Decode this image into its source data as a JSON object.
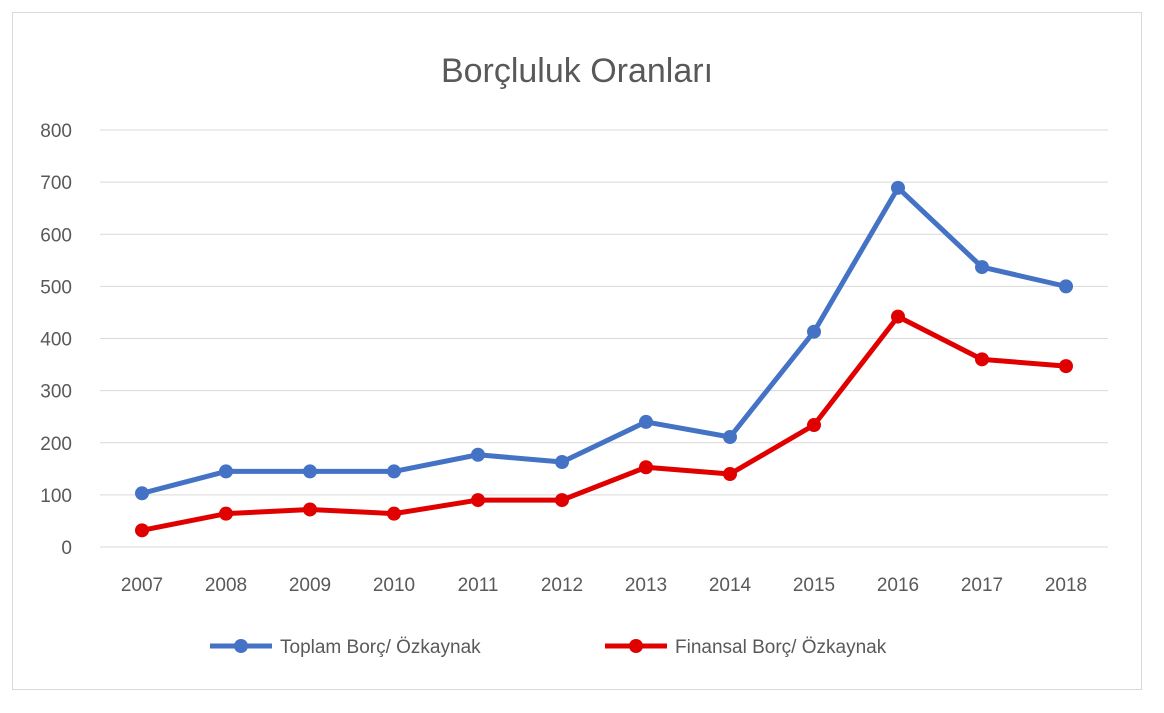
{
  "chart_data": {
    "type": "line",
    "title": "Borçluluk Oranları",
    "xlabel": "",
    "ylabel": "",
    "categories": [
      "2007",
      "2008",
      "2009",
      "2010",
      "2011",
      "2012",
      "2013",
      "2014",
      "2015",
      "2016",
      "2017",
      "2018"
    ],
    "ylim": [
      0,
      800
    ],
    "yticks": [
      "0",
      "100",
      "200",
      "300",
      "400",
      "500",
      "600",
      "700",
      "800"
    ],
    "grid": true,
    "legend_position": "bottom",
    "series": [
      {
        "name": "Toplam Borç/ Özkaynak",
        "color": "#4472C4",
        "values": [
          103,
          145,
          145,
          145,
          177,
          163,
          240,
          211,
          413,
          689,
          537,
          500
        ]
      },
      {
        "name": "Finansal Borç/ Özkaynak",
        "color": "#E00000",
        "values": [
          32,
          64,
          72,
          64,
          90,
          90,
          153,
          140,
          234,
          442,
          360,
          347
        ]
      }
    ]
  }
}
